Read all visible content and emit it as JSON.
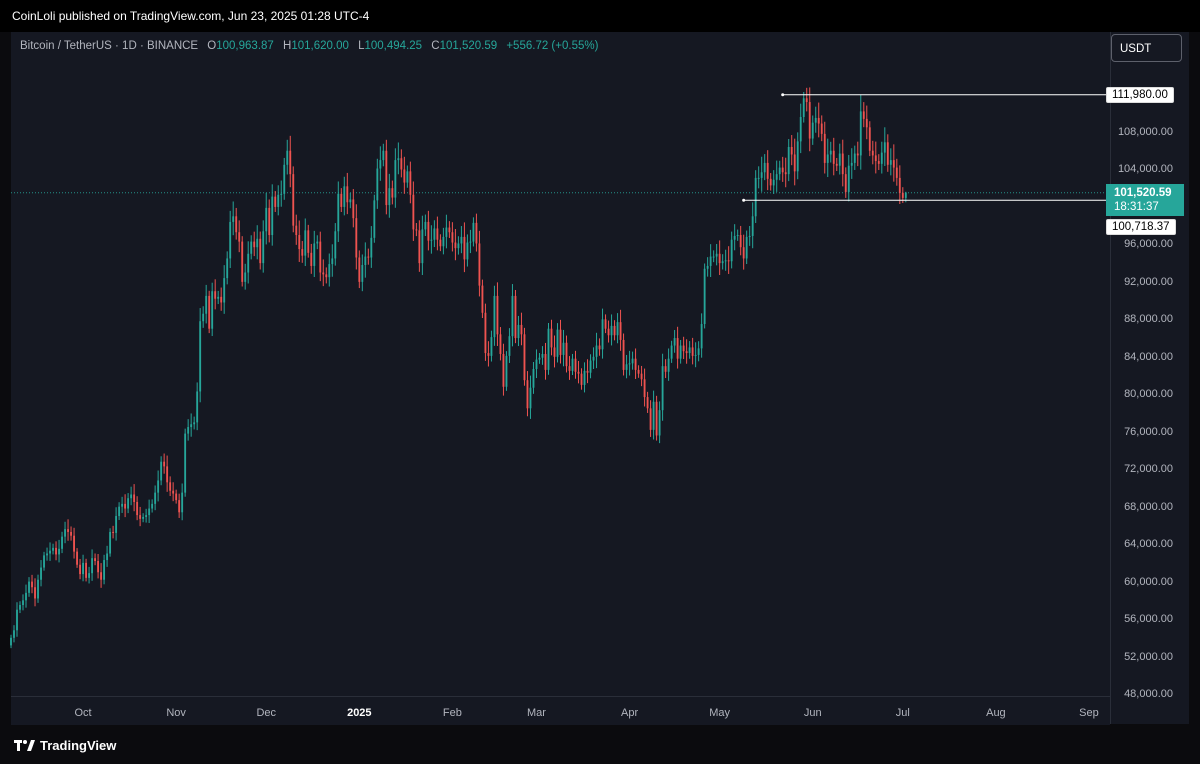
{
  "header": {
    "published": "CoinLoli published on TradingView.com, Jun 23, 2025 01:28 UTC-4"
  },
  "legend": {
    "symbol": "Bitcoin / TetherUS · 1D · BINANCE",
    "o_label": "O",
    "o_value": "100,963.87",
    "h_label": "H",
    "h_value": "101,620.00",
    "l_label": "L",
    "l_value": "100,494.25",
    "c_label": "C",
    "c_value": "101,520.59",
    "change": "+556.72 (+0.55%)"
  },
  "currency_button": "USDT",
  "price_labels": {
    "high_box": "111,980.00",
    "current_price": "101,520.59",
    "countdown": "18:31:37",
    "low_box": "100,718.37"
  },
  "footer": {
    "brand": "TradingView"
  },
  "colors": {
    "up": "#26a69a",
    "down": "#ef5350",
    "background": "#151822"
  },
  "chart_data": {
    "type": "candlestick",
    "title": "Bitcoin / TetherUS · 1D · BINANCE",
    "ylim": [
      48000,
      115000
    ],
    "y_ticks": [
      "108,000.00",
      "104,000.00",
      "96,000.00",
      "92,000.00",
      "88,000.00",
      "84,000.00",
      "80,000.00",
      "76,000.00",
      "72,000.00",
      "68,000.00",
      "64,000.00",
      "60,000.00",
      "56,000.00",
      "52,000.00",
      "48,000.00"
    ],
    "x_ticks": [
      "Oct",
      "Nov",
      "Dec",
      "2025",
      "Feb",
      "Mar",
      "Apr",
      "May",
      "Jun",
      "Jul",
      "Aug",
      "Sep"
    ],
    "x_range": [
      "2024-09-07",
      "2025-09-08"
    ],
    "first_candle": "2024-09-07",
    "closes": [
      54000,
      54800,
      57000,
      57500,
      58000,
      58800,
      60000,
      59400,
      58200,
      60200,
      61500,
      62800,
      63000,
      63300,
      63600,
      62900,
      63500,
      64800,
      65600,
      65300,
      64900,
      63200,
      61800,
      60800,
      62000,
      60400,
      60900,
      62500,
      62200,
      61000,
      60200,
      62300,
      63000,
      65300,
      65200,
      67000,
      68000,
      68300,
      67800,
      68900,
      69300,
      68500,
      67100,
      66700,
      66900,
      67100,
      67800,
      68300,
      69500,
      70800,
      72800,
      72300,
      70600,
      69700,
      69400,
      68700,
      67400,
      69500,
      75800,
      76500,
      76800,
      77000,
      80300,
      87800,
      88600,
      90500,
      87000,
      91000,
      90200,
      90400,
      89800,
      92400,
      94500,
      98400,
      99000,
      97300,
      96300,
      92000,
      93000,
      95000,
      96300,
      95700,
      96600,
      94000,
      97400,
      99900,
      97000,
      101100,
      100000,
      101300,
      101400,
      104500,
      106000,
      103500,
      98000,
      97000,
      95500,
      94800,
      97500,
      95100,
      93700,
      96100,
      96300,
      93000,
      92800,
      92500,
      93900,
      94500,
      97400,
      101400,
      100000,
      102200,
      100500,
      100800,
      98800,
      94600,
      92000,
      93800,
      94700,
      94600,
      96700,
      100700,
      104100,
      105000,
      106000,
      100200,
      102000,
      101000,
      105000,
      105200,
      104000,
      102600,
      103800,
      101300,
      97600,
      97500,
      94000,
      97600,
      98400,
      96400,
      96500,
      97700,
      96500,
      95800,
      96800,
      97800,
      97300,
      96200,
      95600,
      96100,
      96800,
      94400,
      96200,
      96300,
      98300,
      96100,
      91600,
      88700,
      84400,
      84100,
      86100,
      90500,
      86400,
      84300,
      80800,
      84100,
      86200,
      90500,
      86000,
      87400,
      86400,
      81500,
      78500,
      80700,
      82700,
      83700,
      83900,
      84300,
      82600,
      87000,
      85000,
      84000,
      86900,
      84200,
      85500,
      83000,
      82500,
      83800,
      82400,
      82200,
      81000,
      82500,
      82300,
      83600,
      84000,
      85200,
      84800,
      88000,
      87000,
      86300,
      87300,
      86300,
      87700,
      85800,
      82600,
      83200,
      83300,
      83800,
      82600,
      82200,
      81600,
      79700,
      78500,
      76200,
      79200,
      75600,
      78300,
      83000,
      82400,
      83800,
      85200,
      86000,
      83800,
      85200,
      84600,
      84400,
      85000,
      84100,
      84200,
      84900,
      87500,
      93400,
      93700,
      94700,
      94700,
      95000,
      94000,
      94200,
      94300,
      94200,
      96500,
      96900,
      97000,
      95700,
      94500,
      96800,
      96900,
      99000,
      103100,
      103100,
      103700,
      104700,
      103000,
      102300,
      102900,
      103500,
      104200,
      103700,
      103500,
      106400,
      105600,
      103800,
      107000,
      109600,
      111600,
      111200,
      107300,
      109000,
      109500,
      108900,
      107800,
      104700,
      105600,
      106000,
      104600,
      104400,
      105700,
      103500,
      101600,
      104400,
      104700,
      105700,
      105500,
      110200,
      109400,
      108500,
      106000,
      105500,
      104900,
      104600,
      105800,
      106900,
      104500,
      105000,
      104200,
      103100,
      101500,
      100964,
      101521
    ],
    "last": {
      "open": 100963.87,
      "high": 101620.0,
      "low": 100494.25,
      "close": 101520.59,
      "change": 556.72,
      "change_pct": 0.55
    },
    "annotations": [
      {
        "type": "horizontal_ray",
        "price": 111980.0,
        "from": "2025-05-22"
      },
      {
        "type": "horizontal_ray",
        "price": 100718.37,
        "from": "2025-05-09"
      }
    ],
    "current_price_line": 101520.59
  }
}
